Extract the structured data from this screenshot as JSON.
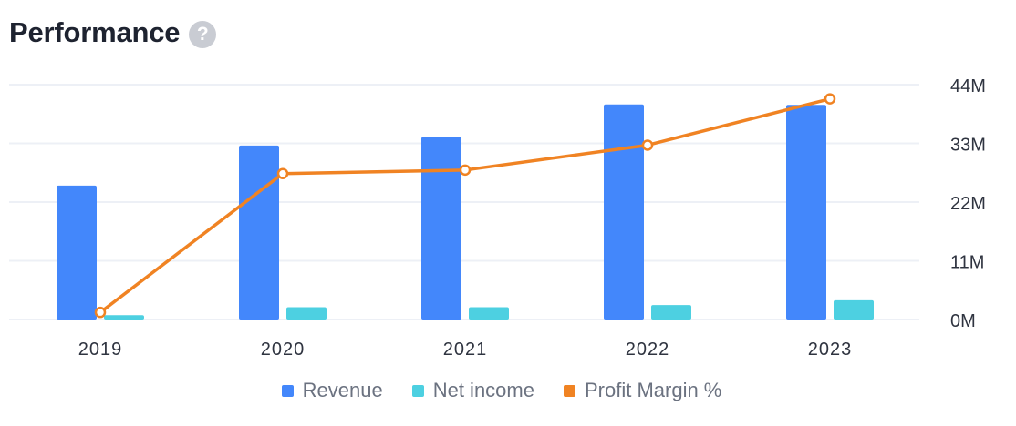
{
  "header": {
    "title": "Performance",
    "help_glyph": "?",
    "help_icon": "question-mark-icon"
  },
  "colors": {
    "revenue": "#4387fb",
    "net_income": "#4dd0e1",
    "profit_margin": "#f08323",
    "grid": "#edf0f6",
    "axis_text": "#2f3440"
  },
  "chart_data": {
    "type": "bar",
    "categories": [
      "2019",
      "2020",
      "2021",
      "2022",
      "2023"
    ],
    "series": [
      {
        "name": "Revenue",
        "type": "bar",
        "values": [
          25.1,
          32.6,
          34.2,
          40.3,
          40.2
        ]
      },
      {
        "name": "Net income",
        "type": "bar",
        "values": [
          0.8,
          2.3,
          2.3,
          2.7,
          3.6
        ]
      },
      {
        "name": "Profit Margin %",
        "type": "line",
        "values": [
          3.2,
          7.1,
          7.2,
          7.9,
          9.2
        ]
      }
    ],
    "y_axis": {
      "position": "right",
      "ticks": [
        "0M",
        "11M",
        "22M",
        "33M",
        "44M"
      ],
      "ylim": [
        0,
        44
      ]
    },
    "y2_range": [
      3,
      9.6
    ],
    "grid": true,
    "legend": {
      "position": "bottom-center",
      "items": [
        "Revenue",
        "Net income",
        "Profit Margin %"
      ]
    }
  }
}
